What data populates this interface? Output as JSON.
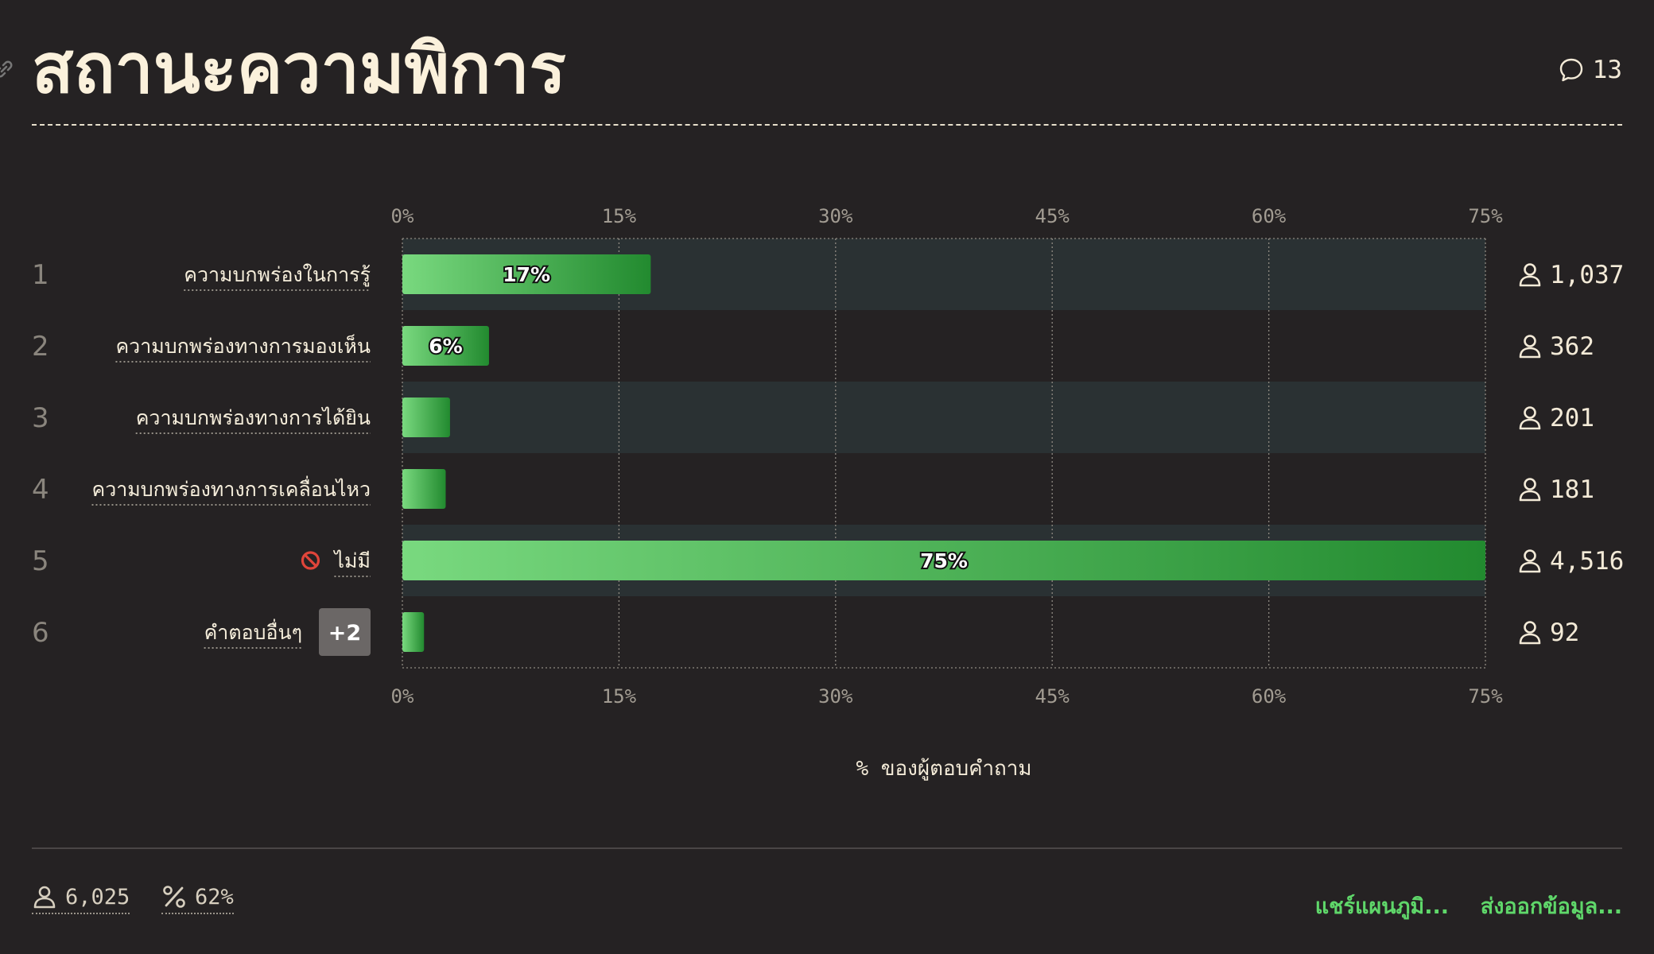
{
  "title": "สถานะความพิการ",
  "comment_count": "13",
  "footer": {
    "respondents": "6,025",
    "response_rate": "62%",
    "share_label": "แชร์แผนภูมิ...",
    "export_label": "ส่งออกข้อมูล..."
  },
  "colors": {
    "bar_start": "#79d97f",
    "bar_end": "#228a2f",
    "band": "#2a3133",
    "accent": "#5fd76a"
  },
  "chart_data": {
    "type": "bar",
    "orientation": "horizontal",
    "xlabel": "% ของผู้ตอบคำถาม",
    "xlim": [
      0,
      75
    ],
    "xticks": [
      "0%",
      "15%",
      "30%",
      "45%",
      "60%",
      "75%"
    ],
    "grid": true,
    "categories": [
      {
        "rank": "1",
        "label": "ความบกพร่องในการรู้",
        "value": 17.2,
        "value_label": "17%",
        "count": "1,037"
      },
      {
        "rank": "2",
        "label": "ความบกพร่องทางการมองเห็น",
        "value": 6.0,
        "value_label": "6%",
        "count": "362"
      },
      {
        "rank": "3",
        "label": "ความบกพร่องทางการได้ยิน",
        "value": 3.3,
        "value_label": "",
        "count": "201"
      },
      {
        "rank": "4",
        "label": "ความบกพร่องทางการเคลื่อนไหว",
        "value": 3.0,
        "value_label": "",
        "count": "181"
      },
      {
        "rank": "5",
        "label": "ไม่มี",
        "icon": "prohibited-icon",
        "value": 75.0,
        "value_label": "75%",
        "count": "4,516"
      },
      {
        "rank": "6",
        "label": "คำตอบอื่นๆ",
        "badge": "+2",
        "value": 1.5,
        "value_label": "",
        "count": "92"
      }
    ]
  }
}
